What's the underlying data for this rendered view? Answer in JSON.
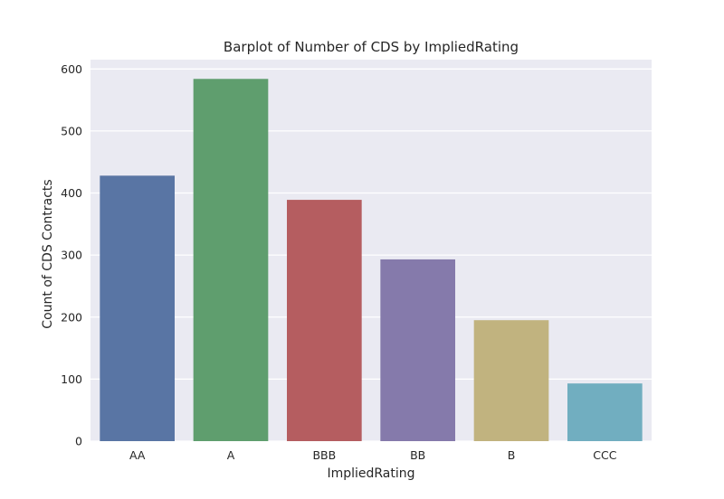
{
  "chart_data": {
    "type": "bar",
    "title": "Barplot of Number of CDS by ImpliedRating",
    "xlabel": "ImpliedRating",
    "ylabel": "Count of CDS Contracts",
    "categories": [
      "AA",
      "A",
      "BBB",
      "BB",
      "B",
      "CCC"
    ],
    "values": [
      428,
      584,
      389,
      293,
      195,
      93
    ],
    "colors": [
      "#5975a4",
      "#5f9e6e",
      "#b55d60",
      "#857aab",
      "#c1b37f",
      "#71aec0"
    ],
    "ylim": [
      0,
      615
    ],
    "yticks": [
      0,
      100,
      200,
      300,
      400,
      500,
      600
    ],
    "grid": true,
    "background": "#eaeaf2"
  }
}
